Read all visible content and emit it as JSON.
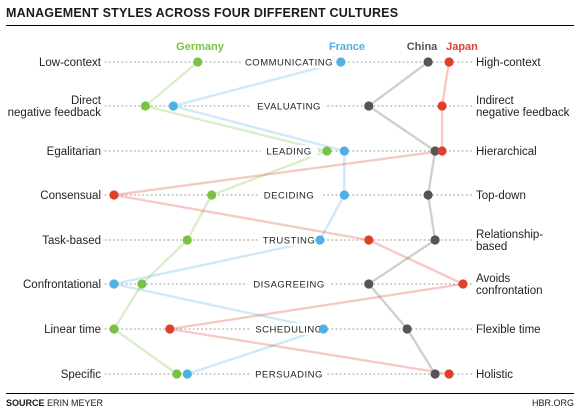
{
  "title": "MANAGEMENT STYLES ACROSS FOUR DIFFERENT CULTURES",
  "source_label": "SOURCE",
  "source_name": "ERIN MEYER",
  "publisher": "HBR.ORG",
  "colors": {
    "Germany": "#7cc242",
    "France": "#4fb0e3",
    "China": "#555555",
    "Japan": "#e0402b",
    "background": "#ffffff",
    "dots": "#999999"
  },
  "chart_data": {
    "type": "line",
    "title": "MANAGEMENT STYLES ACROSS FOUR DIFFERENT CULTURES",
    "x_scale": "position along each dimension's continuum from the left-end label to the right-end label",
    "xlim": [
      0,
      1
    ],
    "dimensions": [
      {
        "name": "COMMUNICATING",
        "left": "Low-context",
        "right": "High-context"
      },
      {
        "name": "EVALUATING",
        "left": "Direct negative feedback",
        "right": "Indirect negative feedback"
      },
      {
        "name": "LEADING",
        "left": "Egalitarian",
        "right": "Hierarchical"
      },
      {
        "name": "DECIDING",
        "left": "Consensual",
        "right": "Top-down"
      },
      {
        "name": "TRUSTING",
        "left": "Task-based",
        "right": "Relationship-based"
      },
      {
        "name": "DISAGREEING",
        "left": "Confrontational",
        "right": "Avoids confrontation"
      },
      {
        "name": "SCHEDULING",
        "left": "Linear time",
        "right": "Flexible time"
      },
      {
        "name": "PERSUADING",
        "left": "Specific",
        "right": "Holistic"
      }
    ],
    "series": [
      {
        "name": "Germany",
        "values": [
          0.24,
          0.09,
          0.61,
          0.28,
          0.21,
          0.08,
          0.0,
          0.18
        ]
      },
      {
        "name": "France",
        "values": [
          0.65,
          0.17,
          0.66,
          0.66,
          0.59,
          0.0,
          0.6,
          0.21
        ]
      },
      {
        "name": "China",
        "values": [
          0.9,
          0.73,
          0.92,
          0.9,
          0.92,
          0.73,
          0.84,
          0.92
        ]
      },
      {
        "name": "Japan",
        "values": [
          0.96,
          0.94,
          0.94,
          0.0,
          0.73,
          1.0,
          0.16,
          0.96
        ]
      }
    ]
  }
}
